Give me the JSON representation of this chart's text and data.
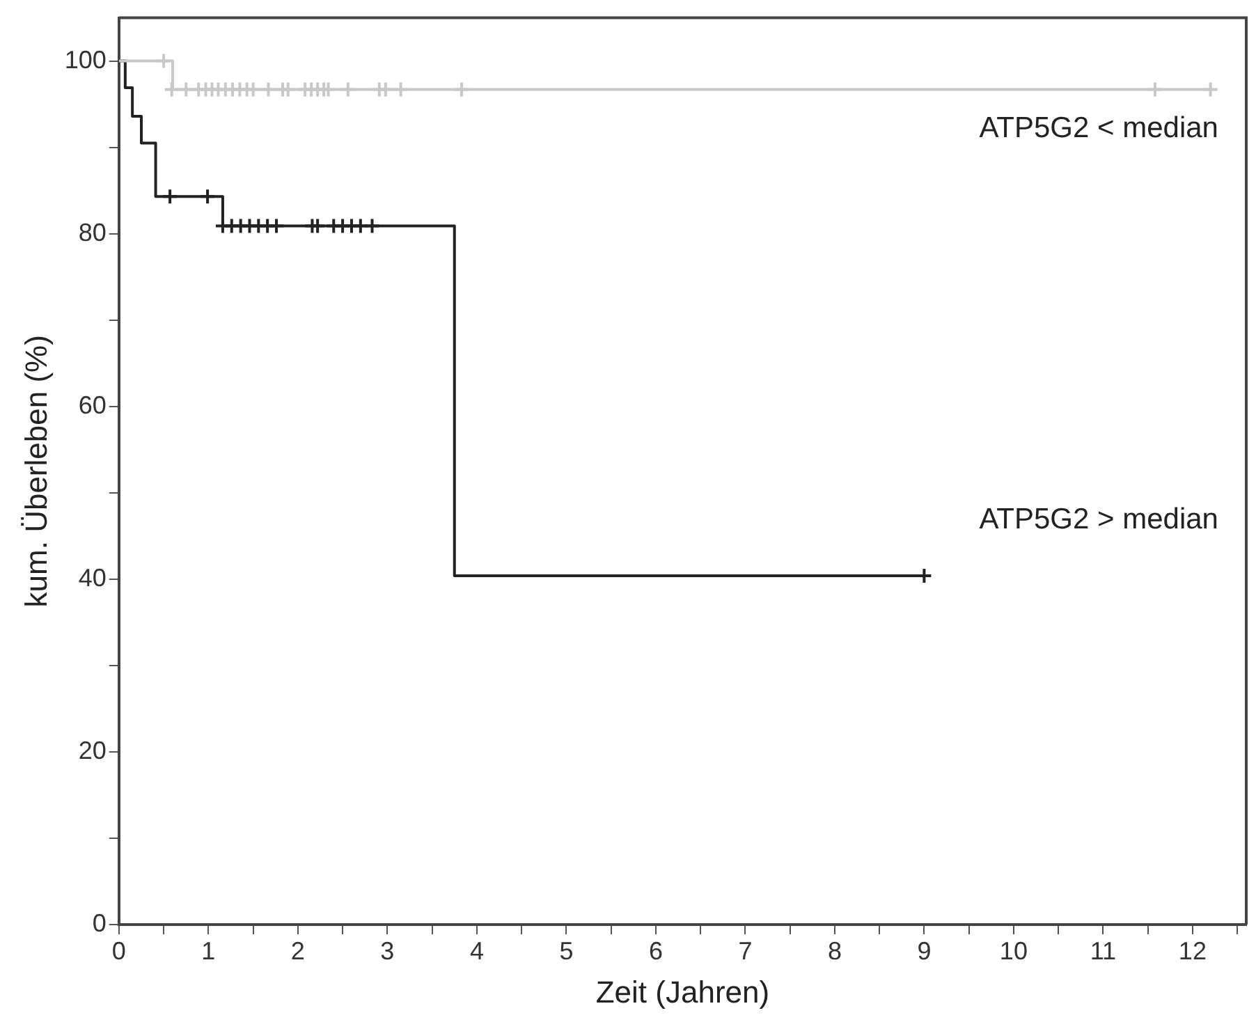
{
  "chart_data": {
    "type": "step",
    "xlabel": "Zeit (Jahren)",
    "ylabel": "kum. Überleben (%)",
    "xlim": [
      0,
      12.6
    ],
    "ylim": [
      0,
      105
    ],
    "xticks": [
      0,
      {
        "value": 0.5,
        "label": null
      },
      1,
      {
        "value": 1.5,
        "label": null
      },
      2,
      {
        "value": 2.5,
        "label": null
      },
      3,
      {
        "value": 3.5,
        "label": null
      },
      4,
      {
        "value": 4.5,
        "label": null
      },
      5,
      {
        "value": 5.5,
        "label": null
      },
      6,
      {
        "value": 6.5,
        "label": null
      },
      7,
      {
        "value": 7.5,
        "label": null
      },
      8,
      {
        "value": 8.5,
        "label": null
      },
      9,
      {
        "value": 9.5,
        "label": null
      },
      10,
      {
        "value": 10.5,
        "label": null
      },
      11,
      {
        "value": 11.5,
        "label": null
      },
      12,
      {
        "value": 12.5,
        "label": null
      }
    ],
    "yticks": [
      0,
      {
        "value": 10,
        "label": null
      },
      20,
      {
        "value": 30,
        "label": null
      },
      40,
      {
        "value": 50,
        "label": null
      },
      60,
      {
        "value": 70,
        "label": null
      },
      80,
      {
        "value": 90,
        "label": null
      },
      100
    ],
    "grid": false,
    "legend": false,
    "series": [
      {
        "name": "ATP5G2 < median",
        "color": "#c8c8c8",
        "x": [
          0,
          0.6,
          12.2
        ],
        "values": [
          100,
          96.7,
          96.7
        ]
      },
      {
        "name": "ATP5G2 > median",
        "color": "#222222",
        "x": [
          0,
          0.07,
          0.15,
          0.25,
          0.41,
          1.16,
          3.75,
          9.0
        ],
        "values": [
          100,
          96.9,
          93.6,
          90.5,
          84.3,
          80.9,
          40.4,
          40.4
        ]
      },
      {
        "type": "scatter",
        "marker": "cross",
        "color": "#c8c8c8",
        "x": [
          0.5,
          0.59,
          0.75,
          0.89,
          0.97,
          1.04,
          1.11,
          1.19,
          1.27,
          1.35,
          1.43,
          1.5,
          1.67,
          1.83,
          1.89,
          2.08,
          2.15,
          2.22,
          2.29,
          2.34,
          2.56,
          2.91,
          2.98,
          3.15,
          3.83,
          11.58,
          12.2
        ],
        "values": [
          100,
          96.7,
          96.7,
          96.7,
          96.7,
          96.7,
          96.7,
          96.7,
          96.7,
          96.7,
          96.7,
          96.7,
          96.7,
          96.7,
          96.7,
          96.7,
          96.7,
          96.7,
          96.7,
          96.7,
          96.7,
          96.7,
          96.7,
          96.7,
          96.7,
          96.7,
          96.7
        ]
      },
      {
        "type": "scatter",
        "marker": "cross",
        "color": "#222222",
        "x": [
          0.57,
          0.99,
          1.16,
          1.26,
          1.36,
          1.46,
          1.56,
          1.66,
          1.76,
          2.16,
          2.22,
          2.4,
          2.5,
          2.6,
          2.7,
          2.83,
          9.0
        ],
        "values": [
          84.3,
          84.3,
          80.9,
          80.9,
          80.9,
          80.9,
          80.9,
          80.9,
          80.9,
          80.9,
          80.9,
          80.9,
          80.9,
          80.9,
          80.9,
          80.9,
          40.4
        ]
      }
    ]
  }
}
